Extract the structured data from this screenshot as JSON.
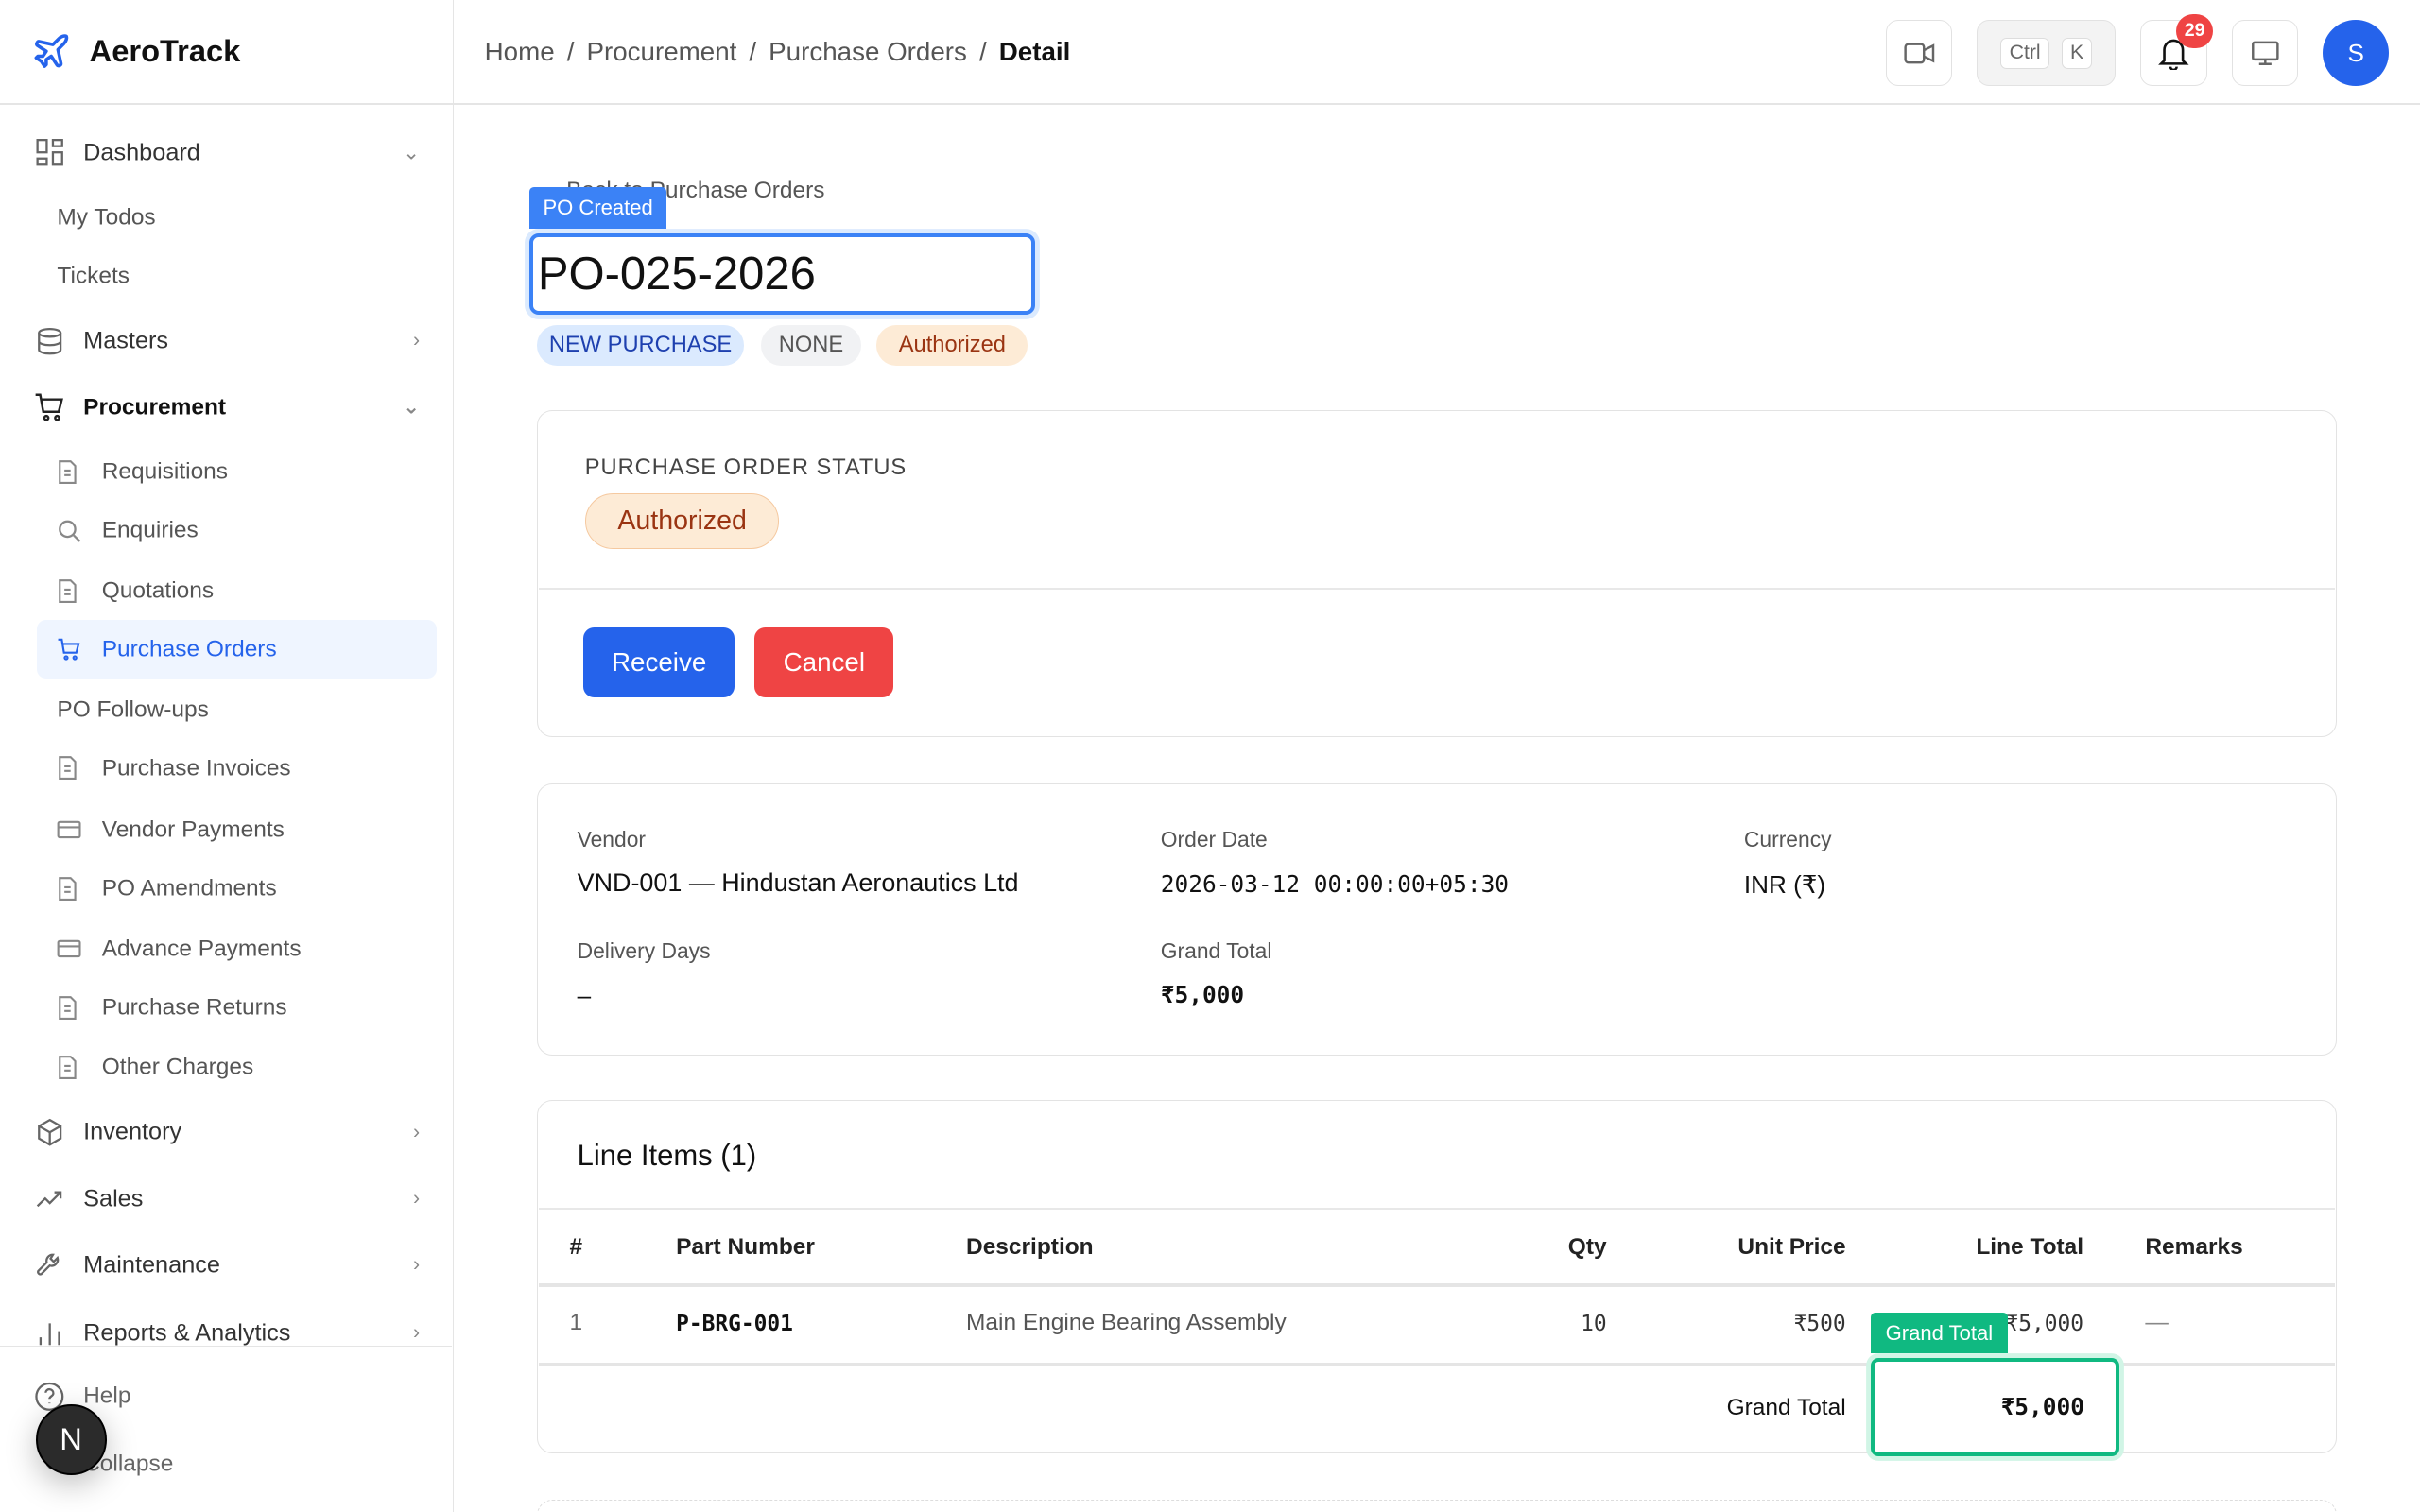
{
  "app": {
    "name": "AeroTrack"
  },
  "breadcrumb": [
    "Home",
    "Procurement",
    "Purchase Orders",
    "Detail"
  ],
  "header": {
    "kbd_ctrl": "Ctrl",
    "kbd_k": "K",
    "notification_count": "29",
    "avatar_initial": "S"
  },
  "sidebar": {
    "dashboard": "Dashboard",
    "my_todos": "My Todos",
    "tickets": "Tickets",
    "masters": "Masters",
    "procurement": "Procurement",
    "procurement_items": [
      "Requisitions",
      "Enquiries",
      "Quotations",
      "Purchase Orders",
      "PO Follow-ups",
      "Purchase Invoices",
      "Vendor Payments",
      "PO Amendments",
      "Advance Payments",
      "Purchase Returns",
      "Other Charges"
    ],
    "inventory": "Inventory",
    "sales": "Sales",
    "maintenance": "Maintenance",
    "reports": "Reports & Analytics",
    "help": "Help",
    "collapse": "Collapse",
    "dev_badge": "N"
  },
  "page": {
    "back_link": "Back to Purchase Orders",
    "po_created_badge": "PO Created",
    "po_number": "PO-025-2026",
    "tags": [
      "NEW PURCHASE",
      "NONE",
      "Authorized"
    ],
    "status_label": "PURCHASE ORDER STATUS",
    "status_value": "Authorized",
    "receive_button": "Receive",
    "cancel_button": "Cancel",
    "info": {
      "vendor_label": "Vendor",
      "vendor": "VND-001 — Hindustan Aeronautics Ltd",
      "order_date_label": "Order Date",
      "order_date": "2026-03-12 00:00:00+05:30",
      "currency_label": "Currency",
      "currency": "INR (₹)",
      "delivery_days_label": "Delivery Days",
      "delivery_days": "–",
      "grand_total_label": "Grand Total",
      "grand_total": "₹5,000"
    },
    "line_items": {
      "title": "Line Items (1)",
      "headers": [
        "#",
        "Part Number",
        "Description",
        "Qty",
        "Unit Price",
        "Line Total",
        "Remarks"
      ],
      "rows": [
        [
          "1",
          "P-BRG-001",
          "Main Engine Bearing Assembly",
          "10",
          "₹500",
          "₹5,000",
          "—"
        ]
      ],
      "grand_total_label": "Grand Total",
      "grand_total": "₹5,000",
      "grand_total_badge": "Grand Total"
    }
  },
  "colors": {
    "primary": "#2563eb",
    "danger": "#ef4444",
    "success": "#10b981",
    "warning_bg": "#fdebd6",
    "warning_text": "#9a3412"
  }
}
